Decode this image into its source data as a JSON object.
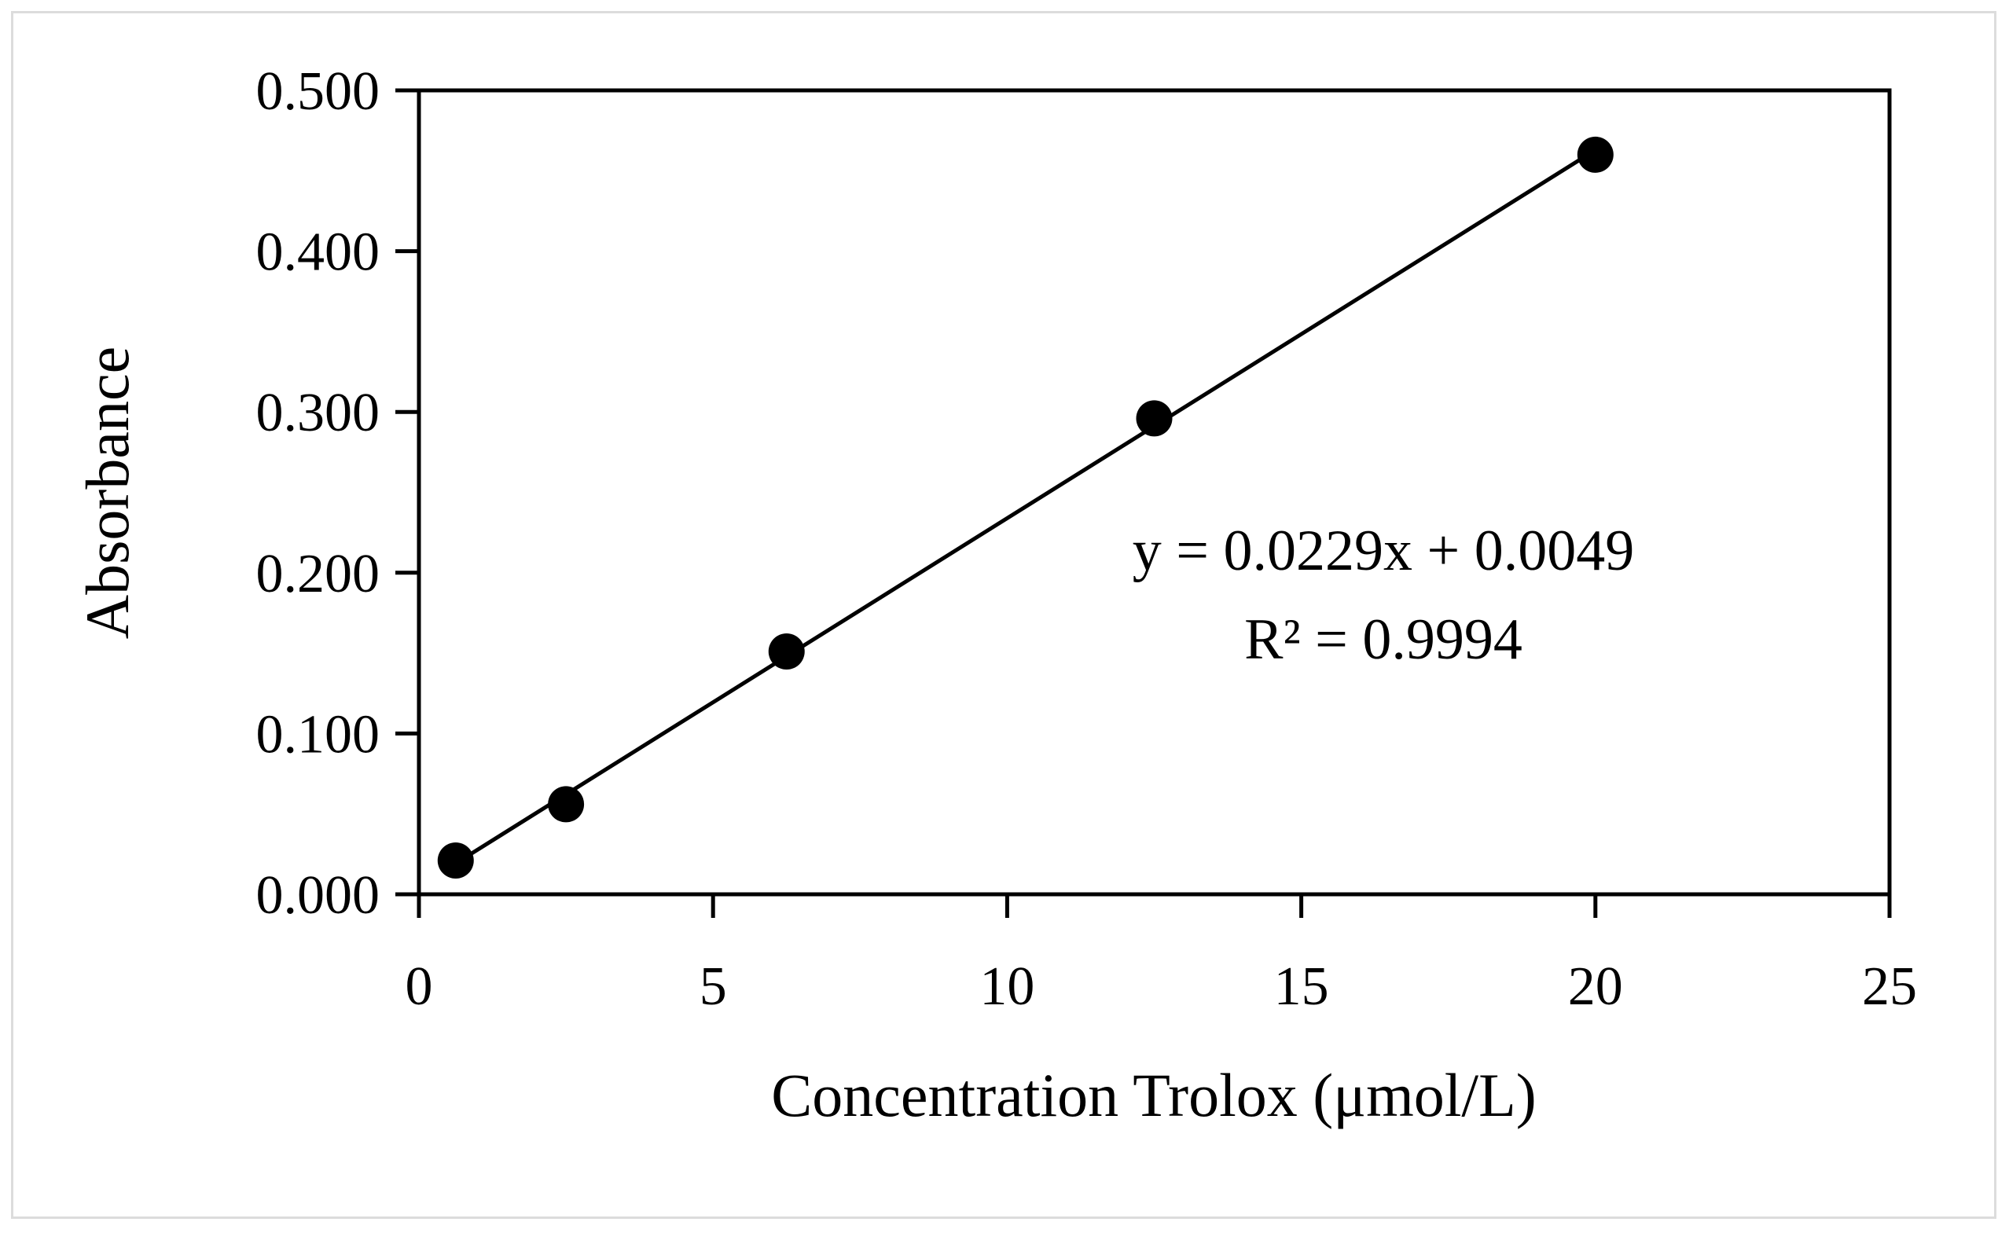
{
  "chart_data": {
    "type": "scatter",
    "xlabel": "Concentration Trolox (μmol/L)",
    "ylabel": "Absorbance",
    "xlim": [
      0,
      25
    ],
    "ylim": [
      0,
      0.5
    ],
    "x_ticks": [
      "0",
      "5",
      "10",
      "15",
      "20",
      "25"
    ],
    "x_tick_values": [
      0,
      5,
      10,
      15,
      20,
      25
    ],
    "y_ticks": [
      "0.000",
      "0.100",
      "0.200",
      "0.300",
      "0.400",
      "0.500"
    ],
    "y_tick_values": [
      0,
      0.1,
      0.2,
      0.3,
      0.4,
      0.5
    ],
    "grid": false,
    "legend": "none",
    "series": [
      {
        "x": [
          0.625,
          2.5,
          6.25,
          12.5,
          20
        ],
        "y": [
          0.021,
          0.056,
          0.151,
          0.296,
          0.46
        ]
      }
    ],
    "trendline": {
      "slope": 0.0229,
      "intercept": 0.0049,
      "x_range": [
        0.625,
        20
      ]
    },
    "annotations": {
      "equation": "y = 0.0229x + 0.0049",
      "r_squared": "R² = 0.9994"
    },
    "colors": {
      "marker": "#000000",
      "line": "#000000"
    }
  }
}
